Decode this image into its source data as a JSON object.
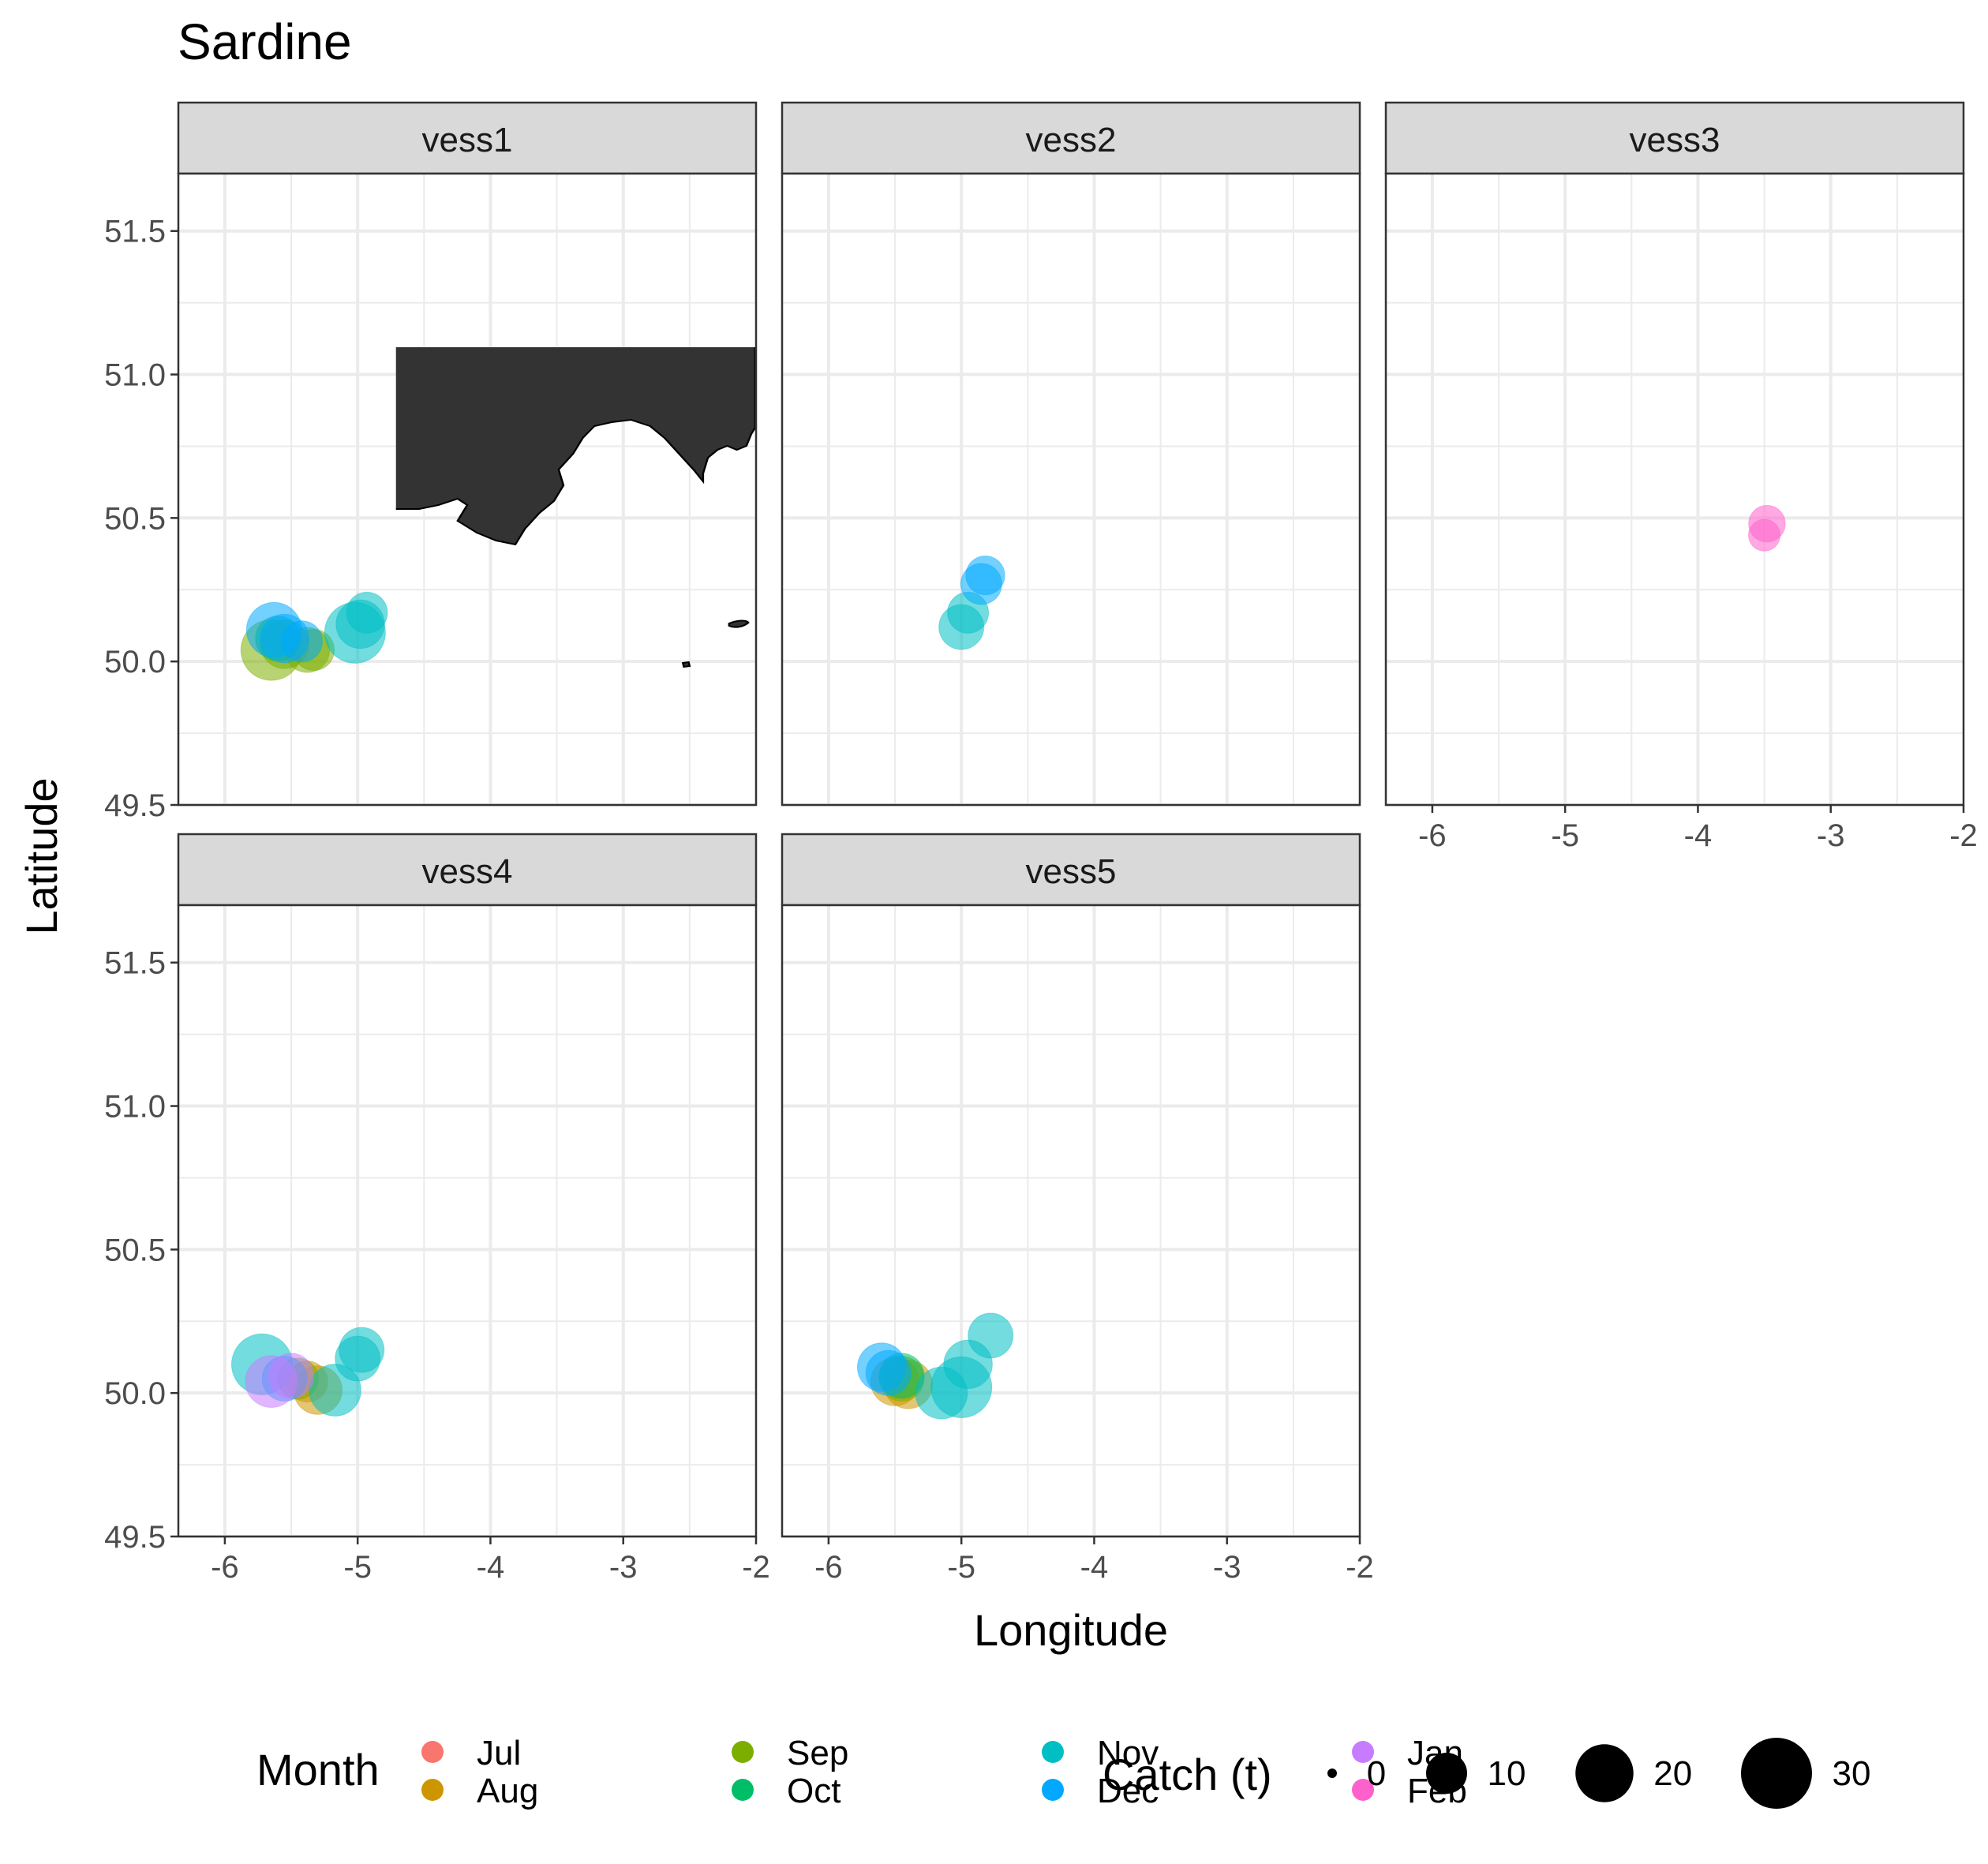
{
  "chart_data": {
    "type": "scatter",
    "title": "Sardine",
    "xlabel": "Longitude",
    "ylabel": "Latitude",
    "xlim": [
      -6.35,
      -2.0
    ],
    "ylim": [
      49.5,
      51.7
    ],
    "x_ticks": [
      -6,
      -5,
      -4,
      -3,
      -2
    ],
    "x_tick_labels": [
      "-6",
      "-5",
      "-4",
      "-3",
      "-2"
    ],
    "y_ticks": [
      49.5,
      50.0,
      50.5,
      51.0,
      51.5
    ],
    "y_tick_labels": [
      "49.5",
      "50.0",
      "50.5",
      "51.0",
      "51.5"
    ],
    "grid": true,
    "legend_position": "bottom",
    "background_map": "south-west England coastline (Cornwall and Devon), dark land fill",
    "legends": {
      "color": {
        "title": "Month",
        "entries": [
          {
            "label": "Jul",
            "color": "#F8766D"
          },
          {
            "label": "Aug",
            "color": "#CD9600"
          },
          {
            "label": "Sep",
            "color": "#7CAE00"
          },
          {
            "label": "Oct",
            "color": "#00BE67"
          },
          {
            "label": "Nov",
            "color": "#00BFC4"
          },
          {
            "label": "Dec",
            "color": "#00A9FF"
          },
          {
            "label": "Jan",
            "color": "#C77CFF"
          },
          {
            "label": "Feb",
            "color": "#FF61CC"
          }
        ]
      },
      "size": {
        "title": "Catch (t)",
        "entries": [
          {
            "label": "0",
            "value": 0
          },
          {
            "label": "10",
            "value": 10
          },
          {
            "label": "20",
            "value": 20
          },
          {
            "label": "30",
            "value": 30
          }
        ]
      }
    },
    "panels": [
      {
        "label": "vess1",
        "points": [
          {
            "lon": -5.65,
            "lat": 50.04,
            "month": "Sep",
            "catch": 22
          },
          {
            "lon": -5.55,
            "lat": 50.06,
            "month": "Sep",
            "catch": 14
          },
          {
            "lon": -5.38,
            "lat": 50.04,
            "month": "Sep",
            "catch": 12
          },
          {
            "lon": -5.33,
            "lat": 50.04,
            "month": "Sep",
            "catch": 10
          },
          {
            "lon": -5.6,
            "lat": 50.08,
            "month": "Oct",
            "catch": 12
          },
          {
            "lon": -5.02,
            "lat": 50.1,
            "month": "Nov",
            "catch": 22
          },
          {
            "lon": -4.98,
            "lat": 50.13,
            "month": "Nov",
            "catch": 14
          },
          {
            "lon": -4.93,
            "lat": 50.17,
            "month": "Nov",
            "catch": 10
          },
          {
            "lon": -5.63,
            "lat": 50.11,
            "month": "Dec",
            "catch": 18
          },
          {
            "lon": -5.55,
            "lat": 50.08,
            "month": "Dec",
            "catch": 14
          },
          {
            "lon": -5.42,
            "lat": 50.07,
            "month": "Dec",
            "catch": 10
          }
        ]
      },
      {
        "label": "vess2",
        "points": [
          {
            "lon": -5.0,
            "lat": 50.12,
            "month": "Nov",
            "catch": 12
          },
          {
            "lon": -4.95,
            "lat": 50.17,
            "month": "Nov",
            "catch": 10
          },
          {
            "lon": -4.85,
            "lat": 50.27,
            "month": "Dec",
            "catch": 10
          },
          {
            "lon": -4.82,
            "lat": 50.3,
            "month": "Dec",
            "catch": 9
          }
        ]
      },
      {
        "label": "vess3",
        "points": [
          {
            "lon": -3.48,
            "lat": 50.48,
            "month": "Feb",
            "catch": 8
          },
          {
            "lon": -3.5,
            "lat": 50.44,
            "month": "Feb",
            "catch": 6
          }
        ]
      },
      {
        "label": "vess4",
        "points": [
          {
            "lon": -5.3,
            "lat": 50.01,
            "month": "Aug",
            "catch": 14
          },
          {
            "lon": -5.38,
            "lat": 50.04,
            "month": "Aug",
            "catch": 10
          },
          {
            "lon": -5.45,
            "lat": 50.05,
            "month": "Sep",
            "catch": 10
          },
          {
            "lon": -5.72,
            "lat": 50.1,
            "month": "Nov",
            "catch": 22
          },
          {
            "lon": -5.17,
            "lat": 50.01,
            "month": "Nov",
            "catch": 16
          },
          {
            "lon": -5.0,
            "lat": 50.12,
            "month": "Nov",
            "catch": 12
          },
          {
            "lon": -4.97,
            "lat": 50.15,
            "month": "Nov",
            "catch": 12
          },
          {
            "lon": -5.55,
            "lat": 50.05,
            "month": "Dec",
            "catch": 12
          },
          {
            "lon": -5.65,
            "lat": 50.04,
            "month": "Jan",
            "catch": 16
          },
          {
            "lon": -5.5,
            "lat": 50.06,
            "month": "Jan",
            "catch": 12
          }
        ]
      },
      {
        "label": "vess5",
        "points": [
          {
            "lon": -5.5,
            "lat": 50.04,
            "month": "Aug",
            "catch": 14
          },
          {
            "lon": -5.4,
            "lat": 50.03,
            "month": "Aug",
            "catch": 14
          },
          {
            "lon": -5.45,
            "lat": 50.05,
            "month": "Sep",
            "catch": 12
          },
          {
            "lon": -5.45,
            "lat": 50.06,
            "month": "Oct",
            "catch": 12
          },
          {
            "lon": -5.0,
            "lat": 50.02,
            "month": "Nov",
            "catch": 22
          },
          {
            "lon": -5.15,
            "lat": 50.0,
            "month": "Nov",
            "catch": 16
          },
          {
            "lon": -4.95,
            "lat": 50.1,
            "month": "Nov",
            "catch": 14
          },
          {
            "lon": -4.78,
            "lat": 50.2,
            "month": "Nov",
            "catch": 12
          },
          {
            "lon": -5.6,
            "lat": 50.09,
            "month": "Dec",
            "catch": 14
          },
          {
            "lon": -5.55,
            "lat": 50.07,
            "month": "Dec",
            "catch": 12
          }
        ]
      }
    ]
  }
}
